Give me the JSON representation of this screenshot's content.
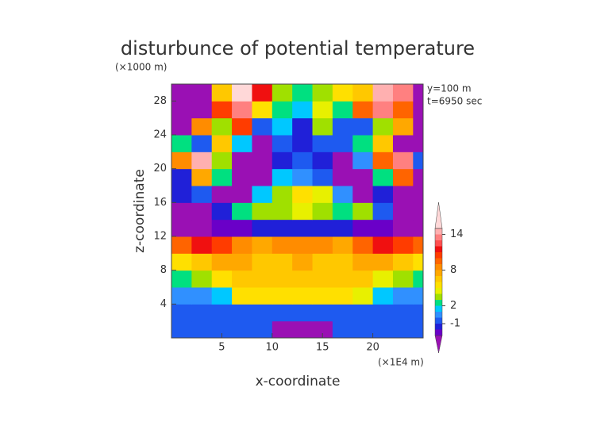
{
  "chart_data": {
    "type": "contour",
    "title": "disturbunce of potential temperature",
    "y_unit_label": "(×1000 m)",
    "x_unit_label": "(×1E4 m)",
    "annotations": [
      "y=100 m",
      "t=6950 sec"
    ],
    "xlabel": "x-coordinate",
    "ylabel": "z-coordinate",
    "xlim": [
      0,
      25
    ],
    "ylim": [
      0,
      30
    ],
    "xticks": [
      5,
      10,
      15,
      20
    ],
    "yticks": [
      4,
      8,
      12,
      16,
      20,
      24,
      28
    ],
    "colorbar": {
      "levels": [
        -3,
        -2,
        -1,
        0,
        1,
        2,
        3,
        4,
        5,
        6,
        7,
        8,
        9,
        10,
        11,
        12,
        13,
        14,
        15
      ],
      "colors": [
        "#9a10b4",
        "#6a00c8",
        "#2020d8",
        "#1e5af0",
        "#3090ff",
        "#00c8ff",
        "#00e080",
        "#a0e000",
        "#e8f000",
        "#ffe000",
        "#ffc800",
        "#ffa800",
        "#ff8c00",
        "#ff6400",
        "#ff3c00",
        "#f01010",
        "#ff5050",
        "#ff8080",
        "#ffb0b0",
        "#ffd8d8"
      ],
      "ticks": [
        -1,
        2,
        8,
        14
      ]
    },
    "field": {
      "x": [
        1,
        3,
        5,
        7,
        9,
        11,
        13,
        15,
        17,
        19,
        21,
        23,
        25
      ],
      "y": [
        1,
        3,
        5,
        7,
        9,
        11,
        13,
        15,
        17,
        19,
        21,
        23,
        25,
        27,
        29
      ],
      "values": [
        [
          -0.5,
          -0.5,
          -0.5,
          -0.5,
          -0.5,
          -3.5,
          -3.5,
          -3.5,
          -0.5,
          -0.5,
          -0.5,
          -0.5,
          -0.5
        ],
        [
          -0.5,
          -0.5,
          -0.5,
          -0.5,
          -0.5,
          -0.5,
          -0.5,
          -0.5,
          -0.5,
          -0.5,
          -0.5,
          -0.5,
          -0.5
        ],
        [
          0.5,
          0.5,
          1.5,
          5.5,
          5.5,
          5.5,
          5.5,
          5.5,
          5.5,
          4.5,
          1.5,
          0.5,
          0.5
        ],
        [
          2.5,
          3.5,
          5.5,
          6.5,
          6.5,
          6.5,
          6.5,
          6.5,
          6.5,
          6.5,
          4.5,
          3.5,
          2.5
        ],
        [
          5.5,
          6.5,
          7.5,
          7.5,
          6.5,
          6.5,
          7.5,
          6.5,
          6.5,
          7.5,
          7.5,
          6.5,
          5.5
        ],
        [
          9.5,
          11.5,
          10.5,
          8.5,
          7.5,
          8.5,
          8.5,
          8.5,
          7.5,
          9.5,
          11.5,
          10.5,
          9.5
        ],
        [
          -3.5,
          -3.5,
          -2.5,
          -2.5,
          -1.5,
          -1.5,
          -1.5,
          -1.5,
          -1.5,
          -2.5,
          -2.5,
          -3.5,
          -3.5
        ],
        [
          -3.5,
          -3.5,
          -1.5,
          2.5,
          3.5,
          3.5,
          4.5,
          3.5,
          2.5,
          3.5,
          -0.5,
          -3.5,
          -3.5
        ],
        [
          -1.5,
          -0.5,
          -3.5,
          -3.5,
          1.5,
          3.5,
          5.5,
          4.5,
          0.5,
          -3.5,
          -1.5,
          -3.5,
          -3.5
        ],
        [
          -1.5,
          7.5,
          2.5,
          -3.5,
          -3.5,
          1.5,
          0.5,
          -0.5,
          -3.5,
          -3.5,
          2.5,
          9.5,
          -3.5
        ],
        [
          8.5,
          14.5,
          3.5,
          -3.5,
          -3.5,
          -1.5,
          -0.5,
          -1.5,
          -3.5,
          0.5,
          9.5,
          13.5,
          -0.5
        ],
        [
          2.5,
          -0.5,
          6.5,
          1.5,
          -3.5,
          -0.5,
          -1.5,
          -0.5,
          -0.5,
          2.5,
          6.5,
          -3.5,
          -3.5
        ],
        [
          -3.5,
          8.5,
          3.5,
          10.5,
          -0.5,
          1.5,
          -1.5,
          3.5,
          -0.5,
          -0.5,
          3.5,
          7.5,
          -3.5
        ],
        [
          -3.5,
          -3.5,
          10.5,
          13.5,
          5.5,
          2.5,
          1.5,
          4.5,
          2.5,
          9.5,
          13.5,
          9.5,
          -3.5
        ],
        [
          -3.5,
          -3.5,
          6.5,
          15.5,
          11.5,
          3.5,
          2.5,
          3.5,
          5.5,
          6.5,
          14.5,
          13.5,
          -3.5
        ]
      ]
    }
  }
}
